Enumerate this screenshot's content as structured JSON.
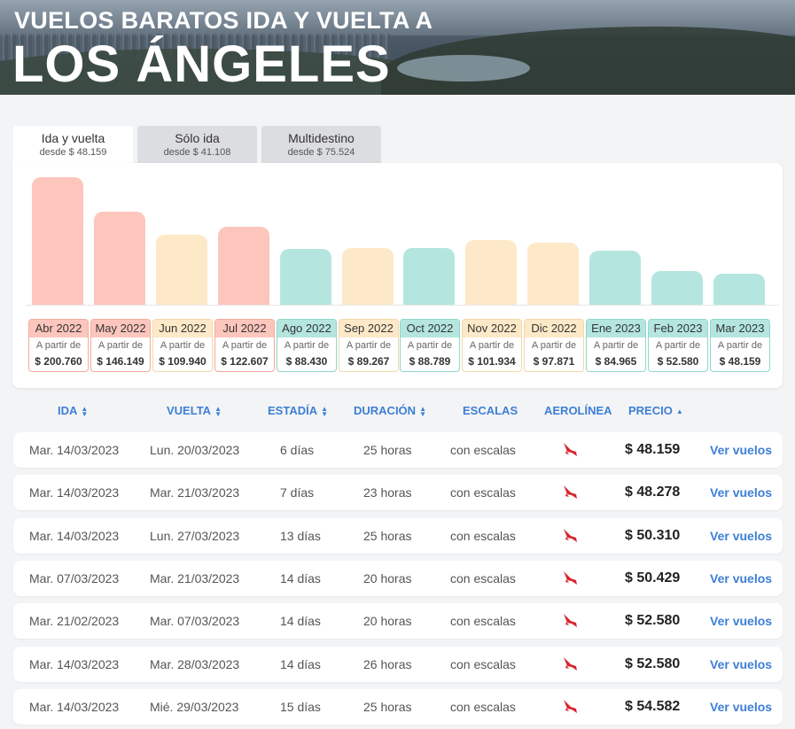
{
  "hero": {
    "subtitle": "VUELOS BARATOS IDA Y VUELTA A",
    "title": "LOS ÁNGELES"
  },
  "tabs": [
    {
      "label": "Ida y vuelta",
      "sub": "desde $ 48.159"
    },
    {
      "label": "Sólo ida",
      "sub": "desde $ 41.108"
    },
    {
      "label": "Multidestino",
      "sub": "desde $ 75.524"
    }
  ],
  "chart_data": {
    "type": "bar",
    "categories": [
      "Abr 2022",
      "May 2022",
      "Jun 2022",
      "Jul 2022",
      "Ago 2022",
      "Sep 2022",
      "Oct 2022",
      "Nov 2022",
      "Dic 2022",
      "Ene 2023",
      "Feb 2023",
      "Mar 2023"
    ],
    "values": [
      200760,
      146149,
      109940,
      122607,
      88430,
      89267,
      88789,
      101934,
      97871,
      84965,
      52580,
      48159
    ],
    "value_labels": [
      "$ 200.760",
      "$ 146.149",
      "$ 109.940",
      "$ 122.607",
      "$ 88.430",
      "$ 89.267",
      "$ 88.789",
      "$ 101.934",
      "$ 97.871",
      "$ 84.965",
      "$ 52.580",
      "$ 48.159"
    ],
    "levels": [
      "high",
      "high",
      "mid",
      "high",
      "low",
      "mid",
      "low",
      "mid",
      "mid",
      "low",
      "low",
      "low"
    ],
    "label_prefix": "A partir de",
    "colors": {
      "high": "#fdc6bd",
      "mid": "#fde9c8",
      "low": "#b4e6df"
    },
    "border_colors": {
      "high": "#f5a99c",
      "mid": "#f3d7a6",
      "low": "#8fd6cb"
    }
  },
  "table": {
    "headers": [
      "IDA",
      "VUELTA",
      "ESTADÍA",
      "DURACIÓN",
      "ESCALAS",
      "AEROLÍNEA",
      "PRECIO"
    ],
    "action_label": "Ver vuelos",
    "rows": [
      [
        "Mar. 14/03/2023",
        "Lun. 20/03/2023",
        "6 días",
        "25 horas",
        "con escalas",
        "$ 48.159"
      ],
      [
        "Mar. 14/03/2023",
        "Mar. 21/03/2023",
        "7 días",
        "23 horas",
        "con escalas",
        "$ 48.278"
      ],
      [
        "Mar. 14/03/2023",
        "Lun. 27/03/2023",
        "13 días",
        "25 horas",
        "con escalas",
        "$ 50.310"
      ],
      [
        "Mar. 07/03/2023",
        "Mar. 21/03/2023",
        "14 días",
        "20 horas",
        "con escalas",
        "$ 50.429"
      ],
      [
        "Mar. 21/02/2023",
        "Mar. 07/03/2023",
        "14 días",
        "20 horas",
        "con escalas",
        "$ 52.580"
      ],
      [
        "Mar. 14/03/2023",
        "Mar. 28/03/2023",
        "14 días",
        "26 horas",
        "con escalas",
        "$ 52.580"
      ],
      [
        "Mar. 14/03/2023",
        "Mié. 29/03/2023",
        "15 días",
        "25 horas",
        "con escalas",
        "$ 54.582"
      ]
    ]
  },
  "colors": {
    "accent": "#3d7fd6",
    "airline": "#d8262e"
  }
}
